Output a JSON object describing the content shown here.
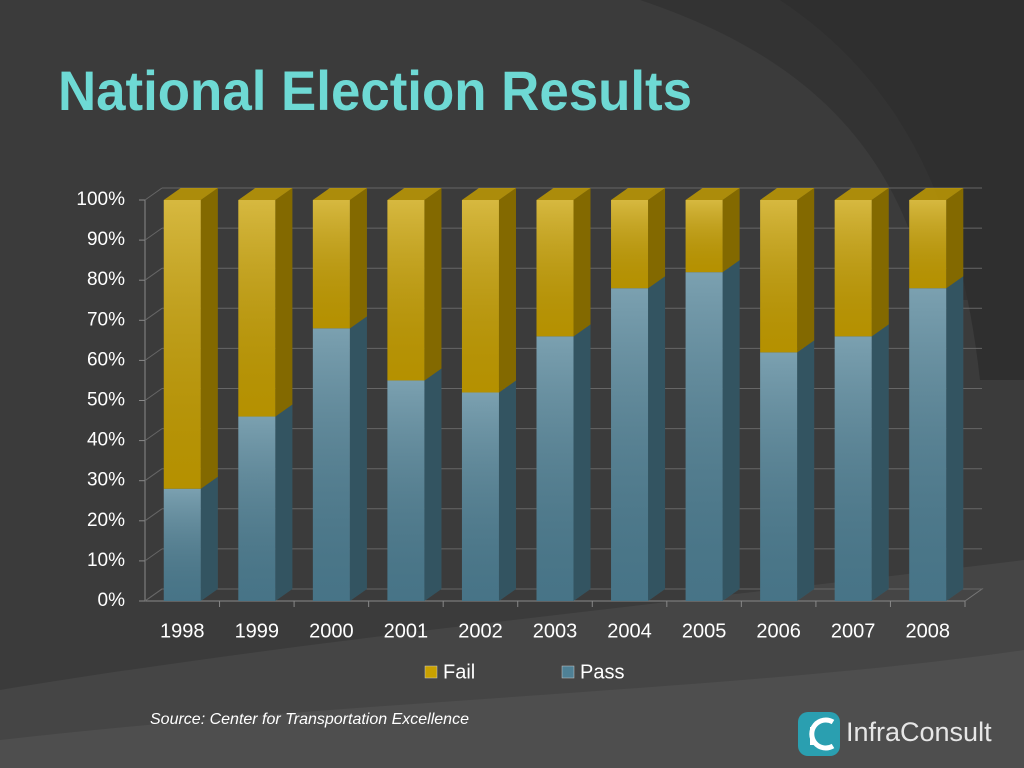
{
  "chart_data": {
    "type": "bar",
    "stacked": true,
    "title": "National Election Results",
    "categories": [
      "1998",
      "1999",
      "2000",
      "2001",
      "2002",
      "2003",
      "2004",
      "2005",
      "2006",
      "2007",
      "2008"
    ],
    "series": [
      {
        "name": "Fail",
        "color": "#c9a100",
        "values": [
          72,
          54,
          32,
          45,
          48,
          34,
          22,
          18,
          38,
          34,
          22
        ]
      },
      {
        "name": "Pass",
        "color": "#4f8196",
        "values": [
          28,
          46,
          68,
          55,
          52,
          66,
          78,
          82,
          62,
          66,
          78
        ]
      }
    ],
    "ylim": [
      0,
      100
    ],
    "yticks": [
      {
        "value": 0,
        "label": "0%"
      },
      {
        "value": 10,
        "label": "10%"
      },
      {
        "value": 20,
        "label": "20%"
      },
      {
        "value": 30,
        "label": "30%"
      },
      {
        "value": 40,
        "label": "40%"
      },
      {
        "value": 50,
        "label": "50%"
      },
      {
        "value": 60,
        "label": "60%"
      },
      {
        "value": 70,
        "label": "70%"
      },
      {
        "value": 80,
        "label": "80%"
      },
      {
        "value": 90,
        "label": "90%"
      },
      {
        "value": 100,
        "label": "100%"
      }
    ],
    "grid": true,
    "legend": "bottom",
    "source": "Source:  Center for Transportation Excellence"
  },
  "logo": {
    "text": "InfraConsult"
  }
}
